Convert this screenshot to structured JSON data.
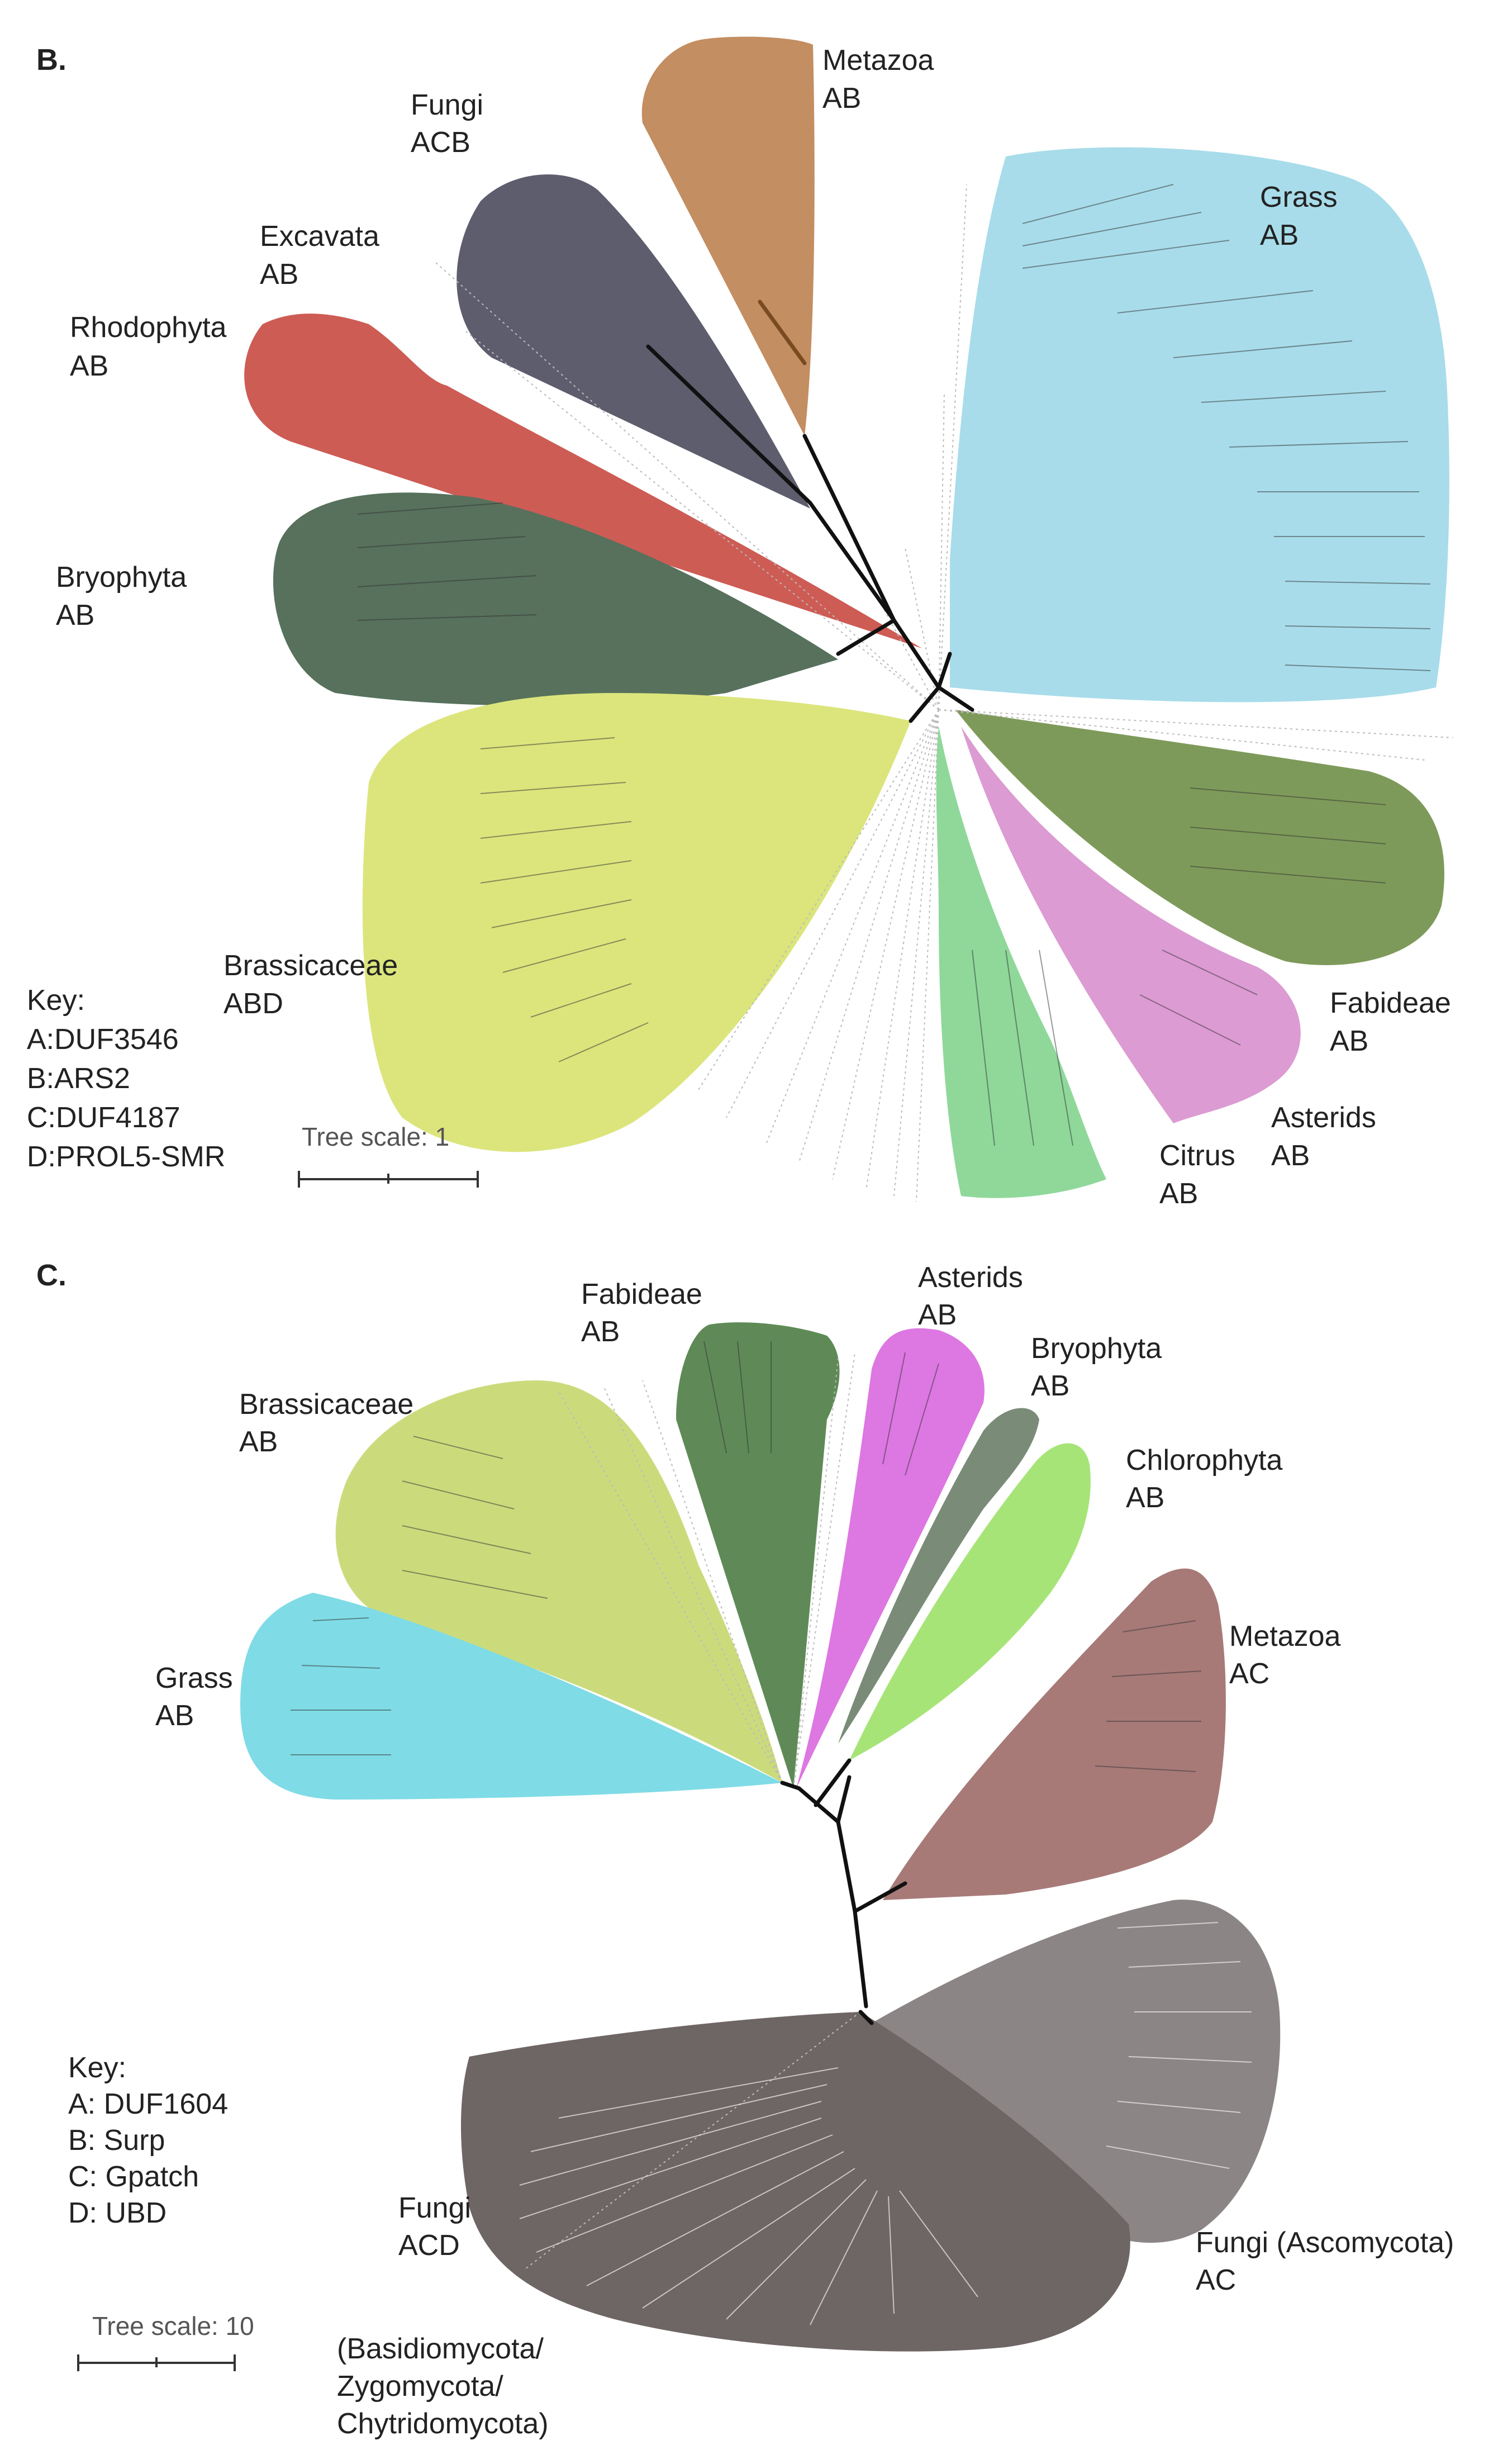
{
  "panels": [
    {
      "id": "B",
      "label": "B.",
      "clades": [
        {
          "name": "Metazoa",
          "domains": "AB",
          "color": "#c38e62"
        },
        {
          "name": "Fungi",
          "domains": "ACB",
          "color": "#5d5d6e"
        },
        {
          "name": "Excavata",
          "domains": "AB",
          "color": ""
        },
        {
          "name": "Rhodophyta",
          "domains": "AB",
          "color": "#cd5c55"
        },
        {
          "name": "Bryophyta",
          "domains": "AB",
          "color": "#57715c"
        },
        {
          "name": "Grass",
          "domains": "AB",
          "color": "#a8dcea"
        },
        {
          "name": "Brassicaceae",
          "domains": "ABD",
          "color": "#dbe57c"
        },
        {
          "name": "Fabideae",
          "domains": "AB",
          "color": "#7e9a5a"
        },
        {
          "name": "Asterids",
          "domains": "AB",
          "color": "#dc9bd2"
        },
        {
          "name": "Citrus",
          "domains": "AB",
          "color": "#8fd89a"
        }
      ],
      "key": {
        "title": "Key:",
        "items": [
          "A:DUF3546",
          "B:ARS2",
          "C:DUF4187",
          "D:PROL5-SMR"
        ]
      },
      "tree_scale": "Tree scale: 1"
    },
    {
      "id": "C",
      "label": "C.",
      "clades": [
        {
          "name": "Fabideae",
          "domains": "AB",
          "color": "#5f8a57"
        },
        {
          "name": "Asterids",
          "domains": "AB",
          "color": "#dd77e2"
        },
        {
          "name": "Bryophyta",
          "domains": "AB",
          "color": "#7a8c78"
        },
        {
          "name": "Chlorophyta",
          "domains": "AB",
          "color": "#a7e478"
        },
        {
          "name": "Brassicaceae",
          "domains": "AB",
          "color": "#cbdb7c"
        },
        {
          "name": "Grass",
          "domains": "AB",
          "color": "#7fdbe6"
        },
        {
          "name": "Metazoa",
          "domains": "AC",
          "color": "#a77a78"
        },
        {
          "name": "Fungi (Ascomycota)",
          "domains": "AC",
          "color": "#8c8585"
        },
        {
          "name": "Fungi",
          "domains": "ACD",
          "color": "#6e6565",
          "note": [
            "(Basidiomycota/",
            "Zygomycota/",
            "Chytridomycota)"
          ]
        }
      ],
      "key": {
        "title": "Key:",
        "items": [
          "A: DUF1604",
          "B: Surp",
          "C: Gpatch",
          "D: UBD"
        ]
      },
      "tree_scale": "Tree scale: 10"
    }
  ]
}
